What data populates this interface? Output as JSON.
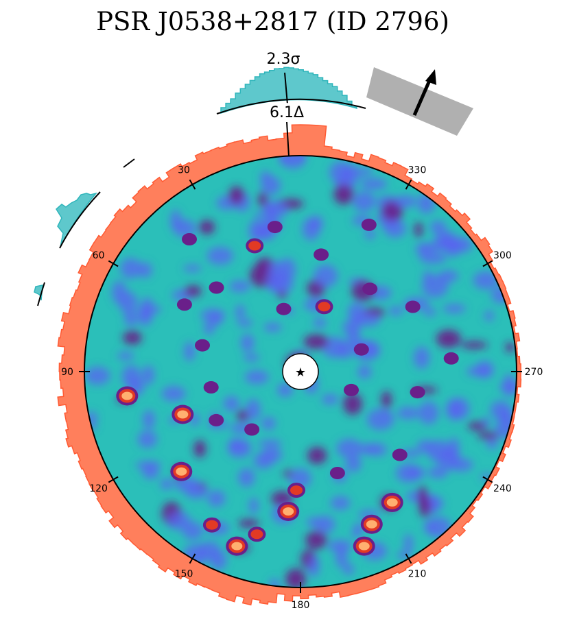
{
  "title": "PSR J0538+2817 (ID 2796)",
  "chart_data": {
    "type": "heatmap",
    "projection": "polar sky map centred on pulsar",
    "title": "PSR J0538+2817 (ID 2796)",
    "angle_ticks": [
      {
        "angle": 30,
        "label": "30"
      },
      {
        "angle": 60,
        "label": "60"
      },
      {
        "angle": 90,
        "label": "90"
      },
      {
        "angle": 120,
        "label": "120"
      },
      {
        "angle": 150,
        "label": "150"
      },
      {
        "angle": 180,
        "label": "180"
      },
      {
        "angle": 210,
        "label": "210"
      },
      {
        "angle": 240,
        "label": "240"
      },
      {
        "angle": 270,
        "label": "270"
      },
      {
        "angle": 300,
        "label": "300"
      },
      {
        "angle": 330,
        "label": "330"
      }
    ],
    "annotations": {
      "significance": "2.3σ",
      "offset": "6.1Δ",
      "arrow_direction_deg": -28
    },
    "center_marker": "★",
    "colors": {
      "background_field": "#2bbfb9",
      "low_emission": "#5a63f0",
      "mid_emission": "#6a1f8a",
      "high_emission": "#e23a24",
      "peak_emission": "#ffb070",
      "radial_histogram": "#ff7f5c",
      "radial_histogram_edge": "#ff5a33",
      "outer_histogram": "#5ec8cc",
      "outer_histogram_edge": "#2fb5bb",
      "direction_band": "#b0b0b0"
    },
    "hotspots": [
      {
        "angle": 205,
        "r": 0.78,
        "level": 3
      },
      {
        "angle": 215,
        "r": 0.74,
        "level": 3
      },
      {
        "angle": 200,
        "r": 0.86,
        "level": 3
      },
      {
        "angle": 160,
        "r": 0.86,
        "level": 3
      },
      {
        "angle": 150,
        "r": 0.82,
        "level": 2
      },
      {
        "angle": 98,
        "r": 0.81,
        "level": 3
      },
      {
        "angle": 130,
        "r": 0.72,
        "level": 3
      },
      {
        "angle": 110,
        "r": 0.58,
        "level": 3
      },
      {
        "angle": 175,
        "r": 0.65,
        "level": 3
      },
      {
        "angle": 178,
        "r": 0.55,
        "level": 2
      },
      {
        "angle": 165,
        "r": 0.78,
        "level": 2
      },
      {
        "angle": 20,
        "r": 0.62,
        "level": 2
      },
      {
        "angle": 340,
        "r": 0.32,
        "level": 2
      },
      {
        "angle": 45,
        "r": 0.55,
        "level": 1
      },
      {
        "angle": 350,
        "r": 0.55,
        "level": 1
      },
      {
        "angle": 10,
        "r": 0.68,
        "level": 1
      },
      {
        "angle": 335,
        "r": 0.75,
        "level": 1
      },
      {
        "angle": 40,
        "r": 0.8,
        "level": 1
      },
      {
        "angle": 60,
        "r": 0.62,
        "level": 1
      },
      {
        "angle": 75,
        "r": 0.47,
        "level": 1
      },
      {
        "angle": 100,
        "r": 0.42,
        "level": 1
      },
      {
        "angle": 120,
        "r": 0.45,
        "level": 1
      },
      {
        "angle": 250,
        "r": 0.25,
        "level": 1
      },
      {
        "angle": 290,
        "r": 0.3,
        "level": 1
      },
      {
        "angle": 300,
        "r": 0.6,
        "level": 1
      },
      {
        "angle": 320,
        "r": 0.5,
        "level": 1
      },
      {
        "angle": 15,
        "r": 0.3,
        "level": 1
      },
      {
        "angle": 140,
        "r": 0.35,
        "level": 1
      },
      {
        "angle": 200,
        "r": 0.5,
        "level": 1
      },
      {
        "angle": 230,
        "r": 0.6,
        "level": 1
      },
      {
        "angle": 260,
        "r": 0.55,
        "level": 1
      },
      {
        "angle": 275,
        "r": 0.7,
        "level": 1
      }
    ]
  }
}
